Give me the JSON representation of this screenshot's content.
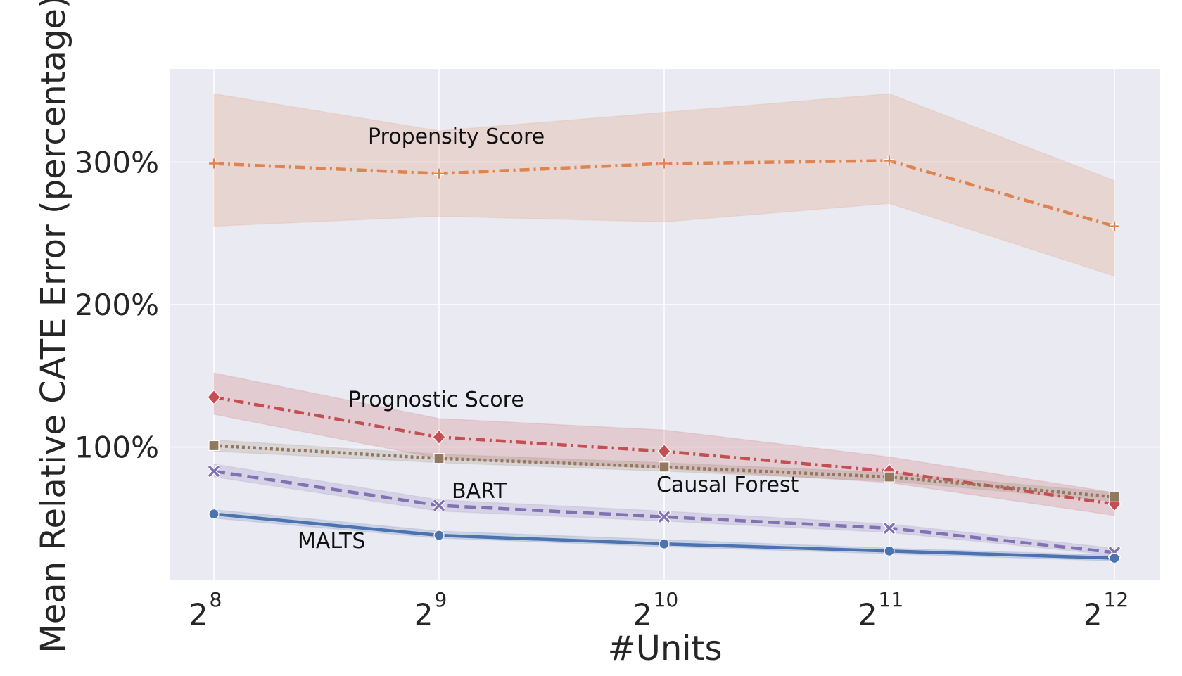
{
  "chart_data": {
    "type": "line",
    "x": [
      256,
      512,
      1024,
      2048,
      4096
    ],
    "x_ticks": [
      {
        "base": "2",
        "exp": "8"
      },
      {
        "base": "2",
        "exp": "9"
      },
      {
        "base": "2",
        "exp": "10"
      },
      {
        "base": "2",
        "exp": "11"
      },
      {
        "base": "2",
        "exp": "12"
      }
    ],
    "x_scale": "log2",
    "xlabel": "#Units",
    "ylabel": "Mean Relative CATE Error (percentage)",
    "ylim": [
      5,
      365
    ],
    "y_ticks": [
      "100%",
      "200%",
      "300%"
    ],
    "y_tick_values": [
      100,
      200,
      300
    ],
    "grid": true,
    "legend": "none (direct labels)",
    "series": [
      {
        "name": "Propensity Score",
        "color": "#dd8452",
        "dash": "14,6,3,6",
        "marker": "plus",
        "values": [
          299,
          292,
          299,
          301,
          255
        ],
        "lower": [
          255,
          262,
          258,
          271,
          220
        ],
        "upper": [
          348,
          322,
          335,
          348,
          287
        ]
      },
      {
        "name": "Prognostic Score",
        "color": "#c44e52",
        "dash": "14,6,3,6",
        "marker": "diamond",
        "values": [
          135,
          107,
          97,
          83,
          60
        ],
        "lower": [
          123,
          92,
          85,
          75,
          52
        ],
        "upper": [
          152,
          120,
          112,
          93,
          68
        ]
      },
      {
        "name": "Causal Forest",
        "color": "#937860",
        "dash": "4,4",
        "marker": "square",
        "values": [
          101,
          92,
          86,
          79,
          65
        ],
        "lower": [
          97,
          89,
          83,
          76,
          62
        ],
        "upper": [
          105,
          95,
          89,
          82,
          68
        ]
      },
      {
        "name": "BART",
        "color": "#8172b3",
        "dash": "16,8",
        "marker": "x",
        "values": [
          83,
          59,
          51,
          43,
          26
        ],
        "lower": [
          79,
          55,
          48,
          40,
          24
        ],
        "upper": [
          88,
          63,
          55,
          46,
          29
        ]
      },
      {
        "name": "MALTS",
        "color": "#4c72b0",
        "dash": "",
        "marker": "circle",
        "values": [
          53,
          38,
          32,
          27,
          22
        ],
        "lower": [
          50,
          36,
          30,
          25,
          20
        ],
        "upper": [
          56,
          41,
          35,
          29,
          24
        ]
      }
    ]
  }
}
